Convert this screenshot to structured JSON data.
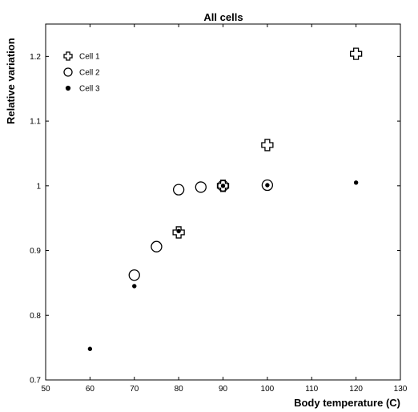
{
  "chart_data": {
    "type": "scatter",
    "title": "All cells",
    "xlabel": "Body temperature (C)",
    "ylabel": "Relative variation",
    "xlim": [
      50,
      130
    ],
    "ylim": [
      0.7,
      1.25
    ],
    "xticks": [
      50,
      60,
      70,
      80,
      90,
      100,
      110,
      120,
      130
    ],
    "xtick_labels": [
      "50",
      "60",
      "70",
      "80",
      "90",
      "100",
      "110",
      "120",
      "130"
    ],
    "yticks": [
      0.7,
      0.8,
      0.9,
      1.0,
      1.1,
      1.2
    ],
    "ytick_labels": [
      "0.7",
      "0.8",
      "0.9",
      "1",
      "1.1",
      "1.2"
    ],
    "grid": false,
    "legend_position": "top-left",
    "series": [
      {
        "name": "Cell 1",
        "marker": "plus",
        "x": [
          80,
          90,
          100,
          120
        ],
        "y": [
          0.928,
          1.0,
          1.063,
          1.204
        ]
      },
      {
        "name": "Cell 2",
        "marker": "circle",
        "x": [
          70,
          75,
          80,
          85,
          90,
          100
        ],
        "y": [
          0.862,
          0.906,
          0.994,
          0.998,
          1.0,
          1.001
        ]
      },
      {
        "name": "Cell 3",
        "marker": "dot",
        "x": [
          60,
          70,
          80,
          90,
          100,
          120
        ],
        "y": [
          0.748,
          0.845,
          0.93,
          1.0,
          1.001,
          1.005
        ]
      }
    ]
  }
}
